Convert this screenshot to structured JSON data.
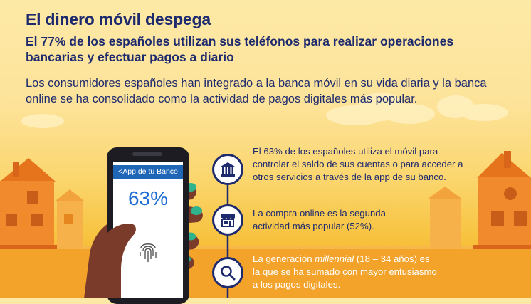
{
  "header": {
    "title": "El dinero móvil despega",
    "subtitle": "El 77% de los españoles utilizan sus teléfonos para realizar operaciones bancarias y efectuar  pagos a diario",
    "intro": "Los consumidores españoles han integrado a la banca móvil en su vida diaria y la banca online se ha consolidado como la actividad de pagos digitales más popular."
  },
  "phone": {
    "app_bar_label": "<App de tu Banco",
    "percent": "63%"
  },
  "facts": [
    {
      "icon": "bank-icon",
      "text": "El 63% de los españoles utiliza el móvil para controlar el saldo de sus cuentas o para acceder a otros servicios a través de la app de su banco."
    },
    {
      "icon": "store-icon",
      "text": "La compra online es la segunda actividad más popular (52%)."
    },
    {
      "icon": "magnifier-icon",
      "text_prefix": "La generación ",
      "text_emphasis": "millennial",
      "text_suffix": " (18 – 34 años) es la que se ha sumado con mayor entusiasmo a los pagos digitales."
    }
  ],
  "colors": {
    "navy": "#1e2a6e",
    "phone_blue": "#1f66b7",
    "sky_top": "#fde9a6",
    "ground_orange": "#f2a12a",
    "house_orange": "#f08a2c",
    "hand_brown": "#7a3b2a",
    "nail_green": "#2fb38c"
  }
}
